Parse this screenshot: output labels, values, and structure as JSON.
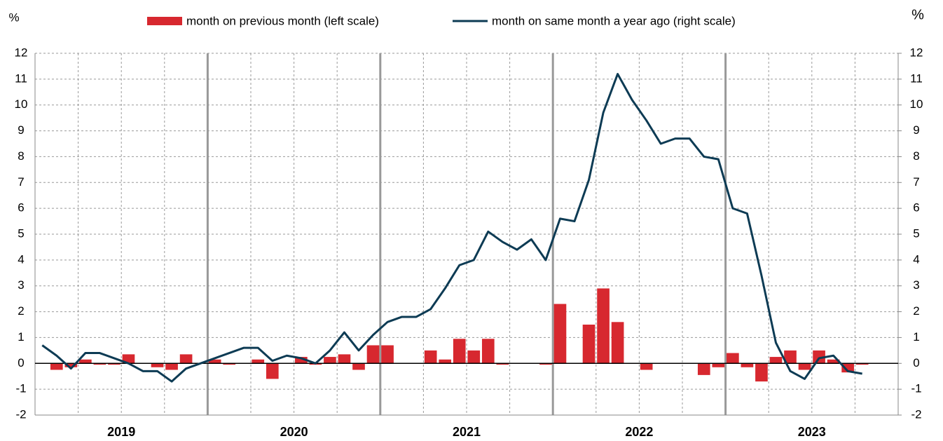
{
  "chart_data": {
    "type": "bar_line",
    "legend": "top",
    "y_unit_left": "%",
    "y_unit_right": "%",
    "year_labels": [
      "2019",
      "2020",
      "2021",
      "2022",
      "2023"
    ],
    "categories": [
      null,
      null,
      null,
      null,
      null,
      null,
      null,
      null,
      null,
      null,
      null,
      null,
      null,
      null,
      null,
      null,
      null,
      null,
      null,
      null,
      null,
      null,
      null,
      null,
      null,
      null,
      null,
      null,
      null,
      null,
      null,
      null,
      null,
      null,
      null,
      null,
      null,
      null,
      null,
      null,
      null,
      null,
      null,
      null,
      null,
      null,
      null,
      null,
      null,
      null,
      null,
      null,
      null,
      null,
      null,
      null,
      null,
      null,
      null,
      null
    ],
    "ylim": [
      -2,
      12
    ],
    "yticks": [
      -2,
      -1,
      0,
      1,
      2,
      3,
      4,
      5,
      6,
      7,
      8,
      9,
      10,
      11,
      12
    ],
    "y2lim": [
      -2,
      12
    ],
    "y2ticks": [
      -2,
      -1,
      0,
      1,
      2,
      3,
      4,
      5,
      6,
      7,
      8,
      9,
      10,
      11,
      12
    ],
    "grid": true,
    "series": [
      {
        "name": "month on previous month (left scale)",
        "type": "bar",
        "color": "#d7282f",
        "values": [
          0,
          -0.25,
          -0.15,
          0.15,
          -0.05,
          -0.05,
          0.35,
          0,
          -0.15,
          -0.25,
          0.35,
          0,
          0.15,
          -0.05,
          0,
          0.15,
          -0.6,
          0,
          0.25,
          -0.05,
          0.25,
          0.35,
          -0.25,
          0.7,
          0.7,
          0,
          0,
          0.5,
          0.15,
          0.95,
          0.5,
          0.95,
          -0.05,
          0,
          0,
          -0.05,
          2.3,
          0,
          1.5,
          2.9,
          1.6,
          0,
          -0.25,
          0,
          0,
          0,
          -0.45,
          -0.15,
          0.4,
          -0.15,
          -0.7,
          0.25,
          0.5,
          -0.25,
          0.5,
          0.15,
          -0.35,
          -0.05,
          null,
          null
        ]
      },
      {
        "name": "month on same month a year ago (right scale)",
        "type": "line",
        "axis": "y2",
        "color": "#0d3b54",
        "values": [
          0.7,
          0.3,
          -0.2,
          0.4,
          0.4,
          0.2,
          0.0,
          -0.3,
          -0.3,
          -0.7,
          -0.2,
          0.0,
          0.2,
          0.4,
          0.6,
          0.6,
          0.1,
          0.3,
          0.2,
          0.0,
          0.5,
          1.2,
          0.5,
          1.1,
          1.6,
          1.8,
          1.8,
          2.1,
          2.9,
          3.8,
          4.0,
          5.1,
          4.7,
          4.4,
          4.8,
          4.0,
          5.6,
          5.5,
          7.1,
          9.7,
          11.2,
          10.2,
          9.4,
          8.5,
          8.7,
          8.7,
          8.0,
          7.9,
          6.0,
          5.8,
          3.4,
          0.8,
          -0.3,
          -0.6,
          0.2,
          0.3,
          -0.3,
          -0.4,
          null,
          null
        ]
      }
    ]
  }
}
